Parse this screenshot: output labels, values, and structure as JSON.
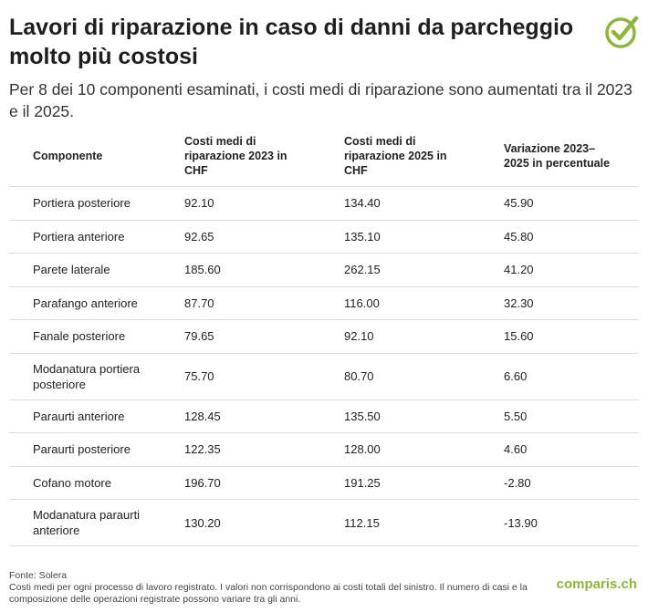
{
  "title": "Lavori di riparazione in caso di danni da parcheggio molto più costosi",
  "subtitle": "Per 8 dei 10 componenti esaminati, i costi medi di riparazione sono aumentati tra il 2023 e il 2025.",
  "icon": "check-circle-icon",
  "accent_color": "#8db63c",
  "table": {
    "headers": [
      "Componente",
      "Costi medi di riparazione 2023 in CHF",
      "Costi medi di riparazione 2025 in CHF",
      "Variazione 2023–2025 in percentuale"
    ],
    "rows": [
      [
        "Portiera posteriore",
        "92.10",
        "134.40",
        "45.90"
      ],
      [
        "Portiera anteriore",
        "92.65",
        "135.10",
        "45.80"
      ],
      [
        "Parete laterale",
        "185.60",
        "262.15",
        "41.20"
      ],
      [
        "Parafango anteriore",
        "87.70",
        "116.00",
        "32.30"
      ],
      [
        "Fanale posteriore",
        "79.65",
        "92.10",
        "15.60"
      ],
      [
        "Modanatura portiera posteriore",
        "75.70",
        "80.70",
        "6.60"
      ],
      [
        "Paraurti anteriore",
        "128.45",
        "135.50",
        "5.50"
      ],
      [
        "Paraurti posteriore",
        "122.35",
        "128.00",
        "4.60"
      ],
      [
        "Cofano motore",
        "196.70",
        "191.25",
        "-2.80"
      ],
      [
        "Modanatura paraurti anteriore",
        "130.20",
        "112.15",
        "-13.90"
      ]
    ]
  },
  "footer": {
    "source": "Fonte: Solera",
    "note": "Costi medi per ogni processo di lavoro registrato. I valori non corrispondono ai costi totali del sinistro. Il numero di casi e la composizione delle operazioni registrate possono variare tra gli anni."
  },
  "logo": "comparis.ch"
}
